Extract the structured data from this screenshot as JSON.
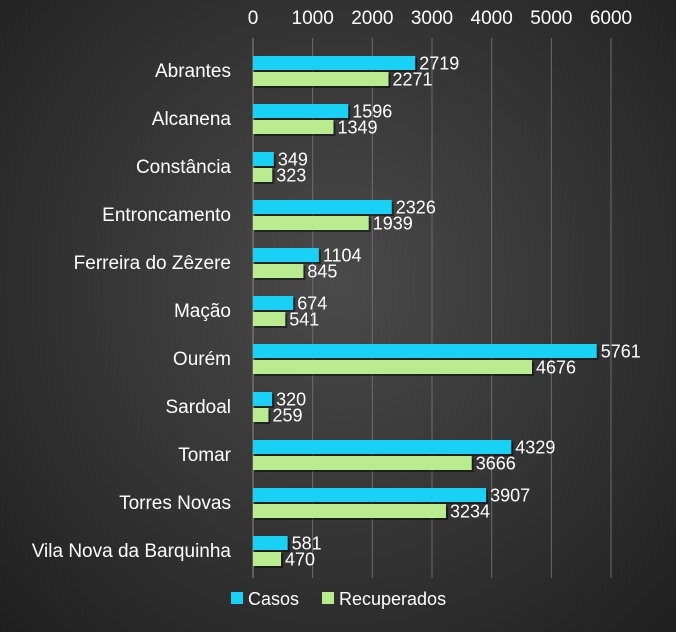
{
  "chart_data": {
    "type": "bar",
    "orientation": "horizontal",
    "categories": [
      "Abrantes",
      "Alcanena",
      "Constância",
      "Entroncamento",
      "Ferreira do Zêzere",
      "Mação",
      "Ourém",
      "Sardoal",
      "Tomar",
      "Torres Novas",
      "Vila Nova da Barquinha"
    ],
    "series": [
      {
        "name": "Casos",
        "color": "#19d0f5",
        "values": [
          2719,
          1596,
          349,
          2326,
          1104,
          674,
          5761,
          320,
          4329,
          3907,
          581
        ]
      },
      {
        "name": "Recuperados",
        "color": "#b9ec8f",
        "values": [
          2271,
          1349,
          323,
          1939,
          845,
          541,
          4676,
          259,
          3666,
          3234,
          470
        ]
      }
    ],
    "xlim": [
      0,
      6000
    ],
    "xticks": [
      "0",
      "1000",
      "2000",
      "3000",
      "4000",
      "5000",
      "6000"
    ],
    "x_axis_position": "top",
    "grid": true,
    "legend_position": "bottom",
    "title": "",
    "xlabel": "",
    "ylabel": ""
  }
}
